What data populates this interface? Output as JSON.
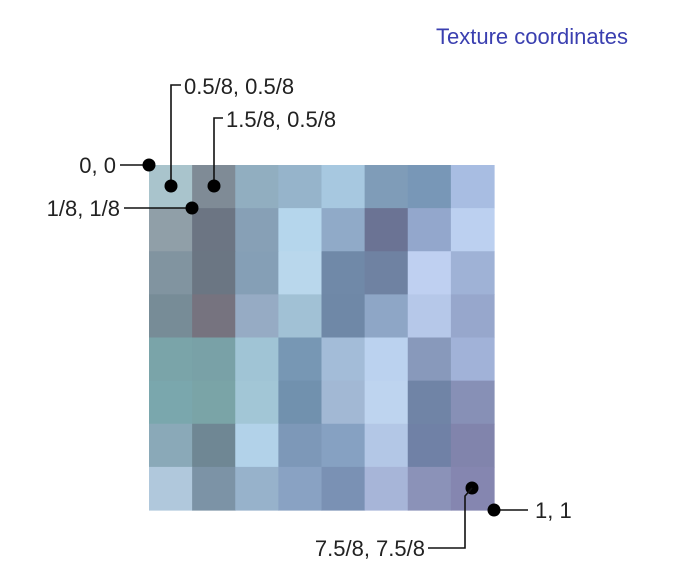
{
  "title": "Texture coordinates",
  "texture_grid": {
    "rows": 8,
    "cols": 8,
    "colors": [
      [
        "#a9c4cc",
        "#7f8b96",
        "#91aec0",
        "#96b4cb",
        "#a7c8e0",
        "#7f9cb8",
        "#7897b7",
        "#a8bde2"
      ],
      [
        "#909fa8",
        "#6c7583",
        "#87a0b6",
        "#b5d6ec",
        "#90aac8",
        "#6b7394",
        "#93a7cc",
        "#bcd0f0"
      ],
      [
        "#8194a0",
        "#6b7683",
        "#859fb6",
        "#b9d7ec",
        "#7089a8",
        "#6f82a2",
        "#bfd0f1",
        "#9fb2d6"
      ],
      [
        "#778c97",
        "#76737f",
        "#96abc4",
        "#a1c1d5",
        "#6f88a7",
        "#8ea6c6",
        "#b6c8e9",
        "#97a7cc"
      ],
      [
        "#7aa4a9",
        "#79a1a7",
        "#a0c4d5",
        "#7797b4",
        "#a3bcd8",
        "#bbd2ef",
        "#8899bb",
        "#a1b2d8"
      ],
      [
        "#7aa7ad",
        "#7aa4a7",
        "#a2c6d6",
        "#7191ae",
        "#a2b8d4",
        "#bed4ef",
        "#7084a6",
        "#8790b6"
      ],
      [
        "#8aa9b8",
        "#6f8794",
        "#b2d2e9",
        "#7d98b8",
        "#86a1c2",
        "#b3c7e6",
        "#7081a6",
        "#8184ac"
      ],
      [
        "#b0c8dc",
        "#7c93a6",
        "#97b2cb",
        "#89a2c3",
        "#7a91b4",
        "#a7b5d8",
        "#8b92b8",
        "#8586b0"
      ]
    ]
  },
  "callouts": [
    {
      "id": "origin",
      "text": "0, 0"
    },
    {
      "id": "center-first",
      "text": "0.5/8, 0.5/8"
    },
    {
      "id": "center-second",
      "text": "1.5/8, 0.5/8"
    },
    {
      "id": "one-eighth",
      "text": "1/8, 1/8"
    },
    {
      "id": "end",
      "text": "1, 1"
    },
    {
      "id": "center-last",
      "text": "7.5/8, 7.5/8"
    }
  ]
}
